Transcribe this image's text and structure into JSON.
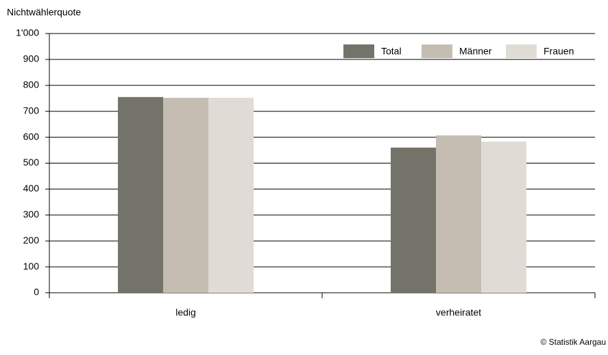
{
  "chart_data": {
    "type": "bar",
    "y_axis_title": "Nichtwählerquote",
    "categories": [
      "ledig",
      "verheiratet"
    ],
    "series": [
      {
        "name": "Total",
        "color": "#737369",
        "values": [
          755,
          560
        ]
      },
      {
        "name": "Männer",
        "color": "#c5bdb1",
        "values": [
          752,
          607
        ]
      },
      {
        "name": "Frauen",
        "color": "#e0dbd5",
        "values": [
          752,
          583
        ]
      }
    ],
    "ylim": [
      0,
      1000
    ],
    "yticks": [
      0,
      100,
      200,
      300,
      400,
      500,
      600,
      700,
      800,
      900,
      {
        "value": 1000,
        "label": "1'000"
      }
    ],
    "grid": true,
    "legend": "top-right",
    "source": "© Statistik Aargau"
  }
}
